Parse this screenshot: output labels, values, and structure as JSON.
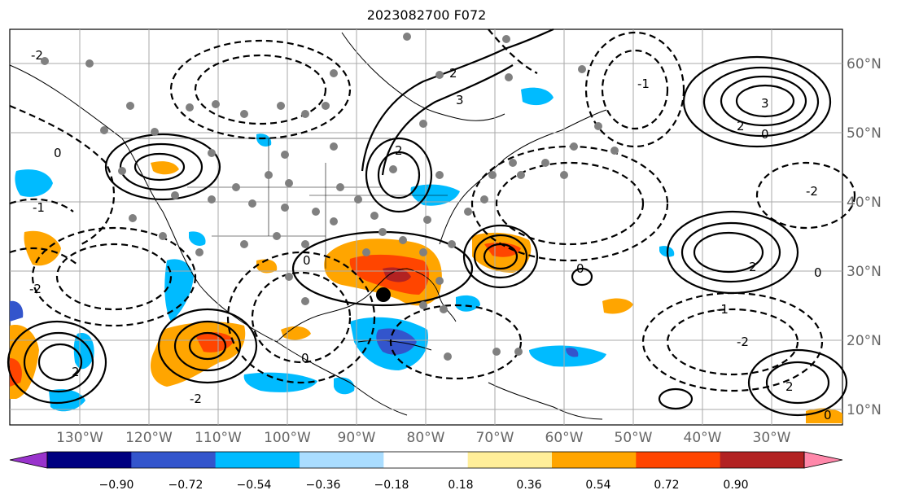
{
  "title": "2023082700 F072",
  "longitude_labels": [
    "130°W",
    "120°W",
    "110°W",
    "100°W",
    "90°W",
    "80°W",
    "70°W",
    "60°W",
    "50°W",
    "40°W",
    "30°W"
  ],
  "latitude_labels": [
    "60°N",
    "50°N",
    "40°N",
    "30°N",
    "20°N",
    "10°N"
  ],
  "colorbar": {
    "tick_labels": [
      "−0.90",
      "−0.72",
      "−0.54",
      "−0.36",
      "−0.18",
      "0.18",
      "0.36",
      "0.54",
      "0.72",
      "0.90"
    ],
    "colors": [
      "#9933cc",
      "#000080",
      "#3355cc",
      "#00bbff",
      "#aaddff",
      "#ffffff",
      "#ffee99",
      "#ffa500",
      "#ff4500",
      "#b22222",
      "#ff88aa"
    ]
  },
  "contour_labels": [
    "-2",
    "-1",
    "0",
    "2",
    "3",
    "-2",
    "0",
    "2",
    "3",
    "0",
    "2",
    "-2",
    "-1",
    "0",
    "2",
    "-2",
    "0",
    "2",
    "0",
    "-1",
    "0",
    "2",
    "-2"
  ],
  "marker": "storm-center-dot",
  "colors": {
    "warm": "#ffa500",
    "hot": "#ff4500",
    "deep": "#b22222",
    "cool": "#00bbff",
    "blue": "#3355cc",
    "grid": "#aaaaaa",
    "station": "#808080"
  }
}
